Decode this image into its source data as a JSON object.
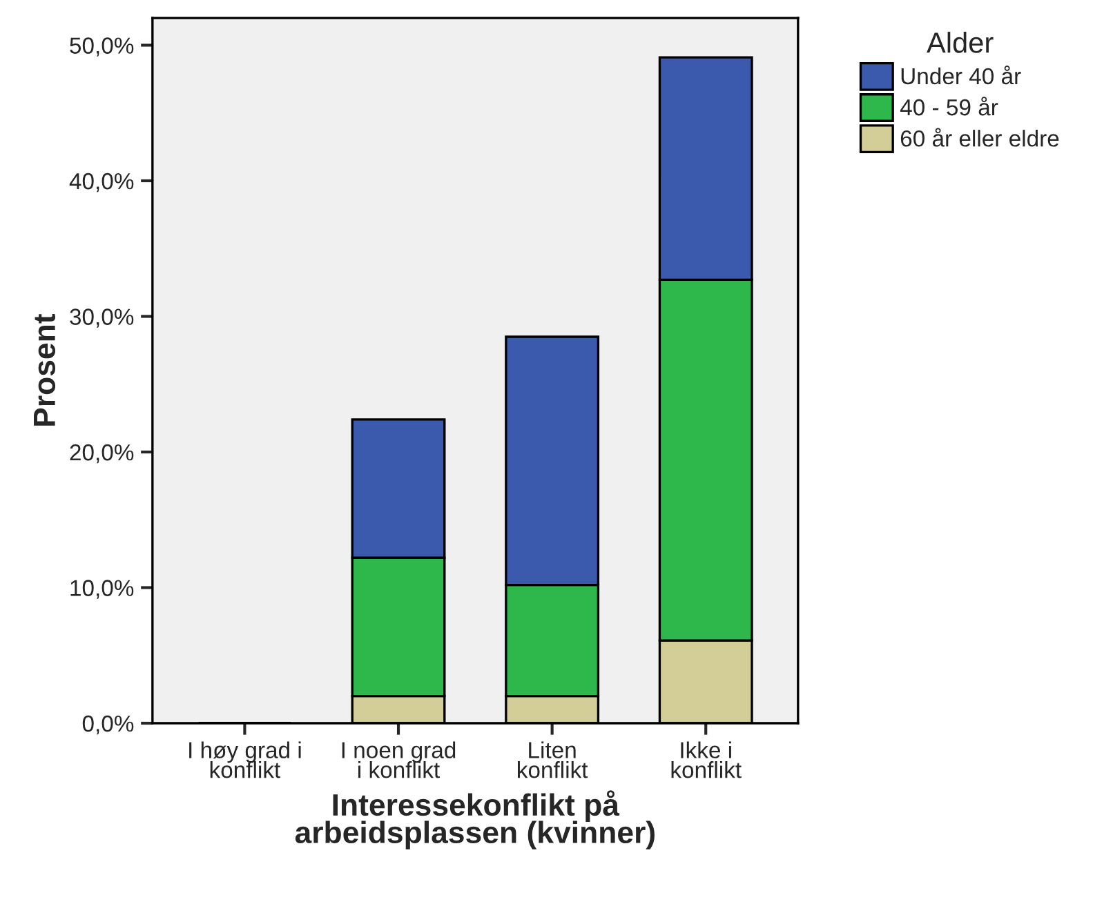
{
  "chart_data": {
    "type": "bar",
    "stacked": true,
    "xlabel": "Interessekonflikt på\narbeidsplassen (kvinner)",
    "ylabel": "Prosent",
    "legend_title": "Alder",
    "legend": "right",
    "categories": [
      "I høy grad i\nkonflikt",
      "I noen grad\ni konflikt",
      "Liten\nkonflikt",
      "Ikke i\nkonflikt"
    ],
    "series": [
      {
        "name": "60 år eller eldre",
        "color": "#d3ce97",
        "values": [
          0,
          2.0,
          2.0,
          6.1
        ]
      },
      {
        "name": "40 - 59 år",
        "color": "#2eb84b",
        "values": [
          0,
          10.2,
          8.2,
          26.6
        ]
      },
      {
        "name": "Under 40 år",
        "color": "#3c5aad",
        "values": [
          0,
          10.2,
          18.3,
          16.4
        ]
      }
    ],
    "ylim": [
      0,
      52
    ],
    "yticks": [
      {
        "value": 0,
        "label": "0,0%"
      },
      {
        "value": 10,
        "label": "10,0%"
      },
      {
        "value": 20,
        "label": "20,0%"
      },
      {
        "value": 30,
        "label": "30,0%"
      },
      {
        "value": 40,
        "label": "40,0%"
      },
      {
        "value": 50,
        "label": "50,0%"
      }
    ]
  }
}
